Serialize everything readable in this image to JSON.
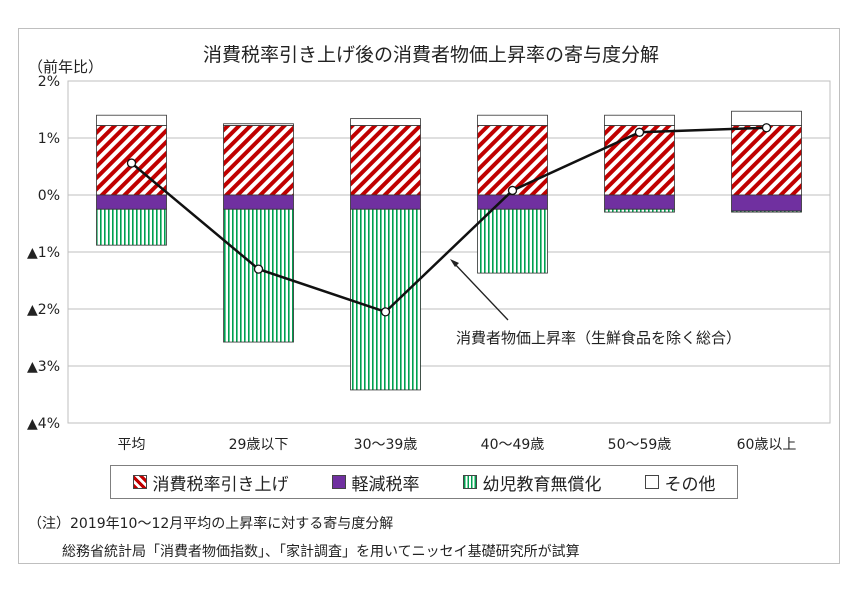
{
  "chart_data": {
    "type": "bar",
    "stacked": true,
    "title": "消費税率引き上げ後の消費者物価上昇率の寄与度分解",
    "ylabel": "（前年比）",
    "ylim": [
      -4,
      2
    ],
    "yticks": [
      2,
      1,
      0,
      -1,
      -2,
      -3,
      -4
    ],
    "ytick_labels": [
      "2%",
      "1%",
      "0%",
      "▲1%",
      "▲2%",
      "▲3%",
      "▲4%"
    ],
    "categories": [
      "平均",
      "29歳以下",
      "30～39歳",
      "40～49歳",
      "50～59歳",
      "60歳以上"
    ],
    "series": [
      {
        "name": "消費税率引き上げ",
        "color": "#c00000",
        "pattern": "diagonal-stripes",
        "values": [
          1.22,
          1.22,
          1.22,
          1.22,
          1.22,
          1.22
        ]
      },
      {
        "name": "軽減税率",
        "color": "#7030a0",
        "pattern": "solid",
        "values": [
          -0.25,
          -0.25,
          -0.25,
          -0.25,
          -0.25,
          -0.28
        ]
      },
      {
        "name": "幼児教育無償化",
        "color": "#00a050",
        "pattern": "vertical-stripes",
        "values": [
          -0.63,
          -2.33,
          -3.17,
          -1.12,
          -0.05,
          -0.02
        ]
      },
      {
        "name": "その他",
        "color": "#ffffff",
        "pattern": "solid",
        "values": [
          0.18,
          0.03,
          0.12,
          0.18,
          0.18,
          0.25
        ]
      }
    ],
    "line": {
      "name": "消費者物価上昇率（生鮮食品を除く総合）",
      "values": [
        0.56,
        -1.3,
        -2.05,
        0.08,
        1.1,
        1.18
      ]
    },
    "annotation": "消費者物価上昇率（生鮮食品を除く総合）",
    "grid": true,
    "legend_position": "bottom"
  },
  "notes": {
    "line1": "（注）2019年10～12月平均の上昇率に対する寄与度分解",
    "line2": "総務省統計局「消費者物価指数」、「家計調査」を用いてニッセイ基礎研究所が試算"
  }
}
